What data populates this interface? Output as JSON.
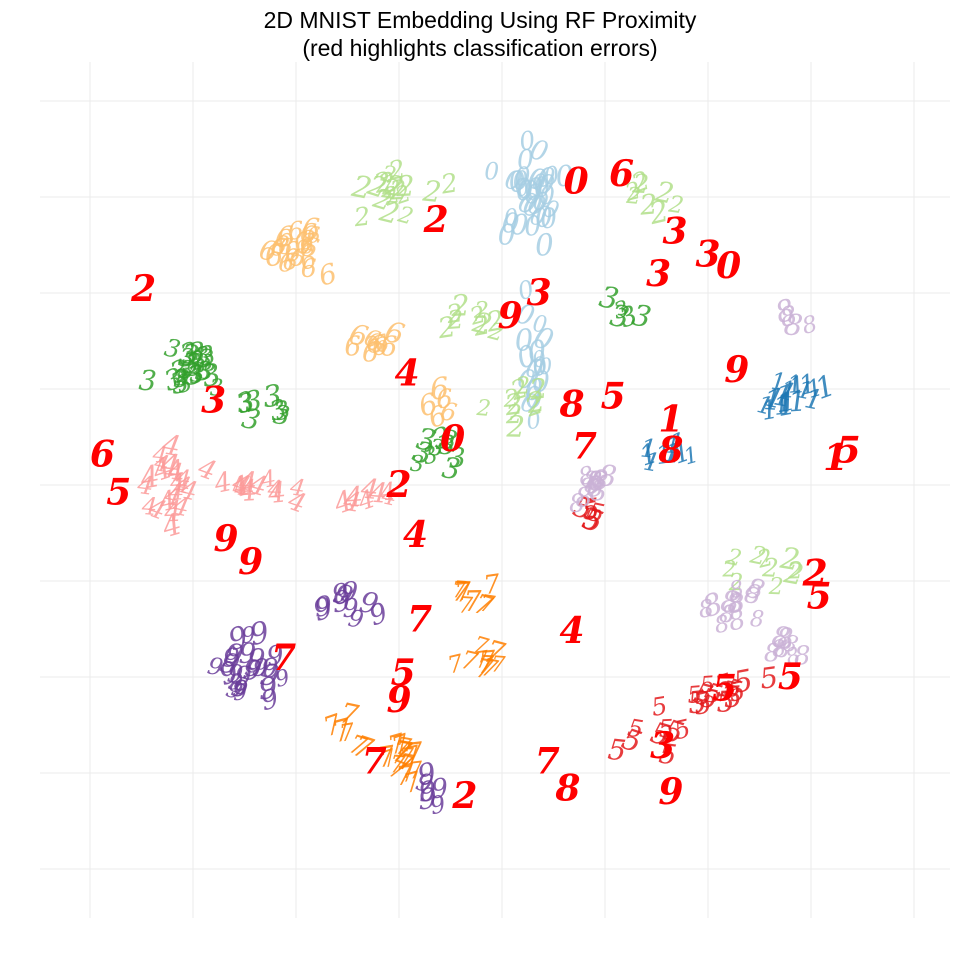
{
  "chart_data": {
    "type": "scatter",
    "title": "2D MNIST Embedding Using RF Proximity",
    "subtitle": "(red highlights classification errors)",
    "xlabel": "",
    "ylabel": "",
    "grid": true,
    "legend": "none",
    "marker": "digit glyphs",
    "colors": {
      "0": "#a6cee3",
      "1": "#1f78b4",
      "2": "#b2df8a",
      "3": "#33a02c",
      "4": "#fb9a99",
      "5": "#e31a1c",
      "6": "#fdbf6f",
      "7": "#ff7f00",
      "8": "#cab2d6",
      "9": "#6a3d9a",
      "error": "#ff0000"
    },
    "xlim": [
      -1.0,
      1.0
    ],
    "ylim": [
      -1.0,
      1.0
    ],
    "clusters": [
      {
        "digit": "0",
        "center": [
          0.07,
          0.75
        ],
        "spread": [
          0.06,
          0.12
        ],
        "count": 36
      },
      {
        "digit": "0",
        "center": [
          0.08,
          0.35
        ],
        "spread": [
          0.03,
          0.15
        ],
        "count": 18
      },
      {
        "digit": "1",
        "center": [
          0.7,
          0.22
        ],
        "spread": [
          0.06,
          0.04
        ],
        "count": 20
      },
      {
        "digit": "1",
        "center": [
          0.4,
          0.1
        ],
        "spread": [
          0.06,
          0.03
        ],
        "count": 10
      },
      {
        "digit": "2",
        "center": [
          -0.26,
          0.76
        ],
        "spread": [
          0.09,
          0.06
        ],
        "count": 18
      },
      {
        "digit": "2",
        "center": [
          -0.06,
          0.42
        ],
        "spread": [
          0.07,
          0.04
        ],
        "count": 10
      },
      {
        "digit": "2",
        "center": [
          0.06,
          0.2
        ],
        "spread": [
          0.06,
          0.05
        ],
        "count": 10
      },
      {
        "digit": "2",
        "center": [
          0.65,
          -0.22
        ],
        "spread": [
          0.08,
          0.04
        ],
        "count": 10
      },
      {
        "digit": "2",
        "center": [
          0.35,
          0.75
        ],
        "spread": [
          0.06,
          0.05
        ],
        "count": 8
      },
      {
        "digit": "3",
        "center": [
          -0.75,
          0.3
        ],
        "spread": [
          0.07,
          0.05
        ],
        "count": 26
      },
      {
        "digit": "3",
        "center": [
          -0.58,
          0.2
        ],
        "spread": [
          0.05,
          0.04
        ],
        "count": 8
      },
      {
        "digit": "3",
        "center": [
          -0.15,
          0.09
        ],
        "spread": [
          0.06,
          0.04
        ],
        "count": 10
      },
      {
        "digit": "3",
        "center": [
          0.3,
          0.45
        ],
        "spread": [
          0.05,
          0.04
        ],
        "count": 5
      },
      {
        "digit": "4",
        "center": [
          -0.8,
          0.0
        ],
        "spread": [
          0.06,
          0.08
        ],
        "count": 22
      },
      {
        "digit": "4",
        "center": [
          -0.6,
          -0.01
        ],
        "spread": [
          0.08,
          0.03
        ],
        "count": 12
      },
      {
        "digit": "4",
        "center": [
          -0.33,
          -0.03
        ],
        "spread": [
          0.05,
          0.02
        ],
        "count": 8
      },
      {
        "digit": "5",
        "center": [
          0.22,
          -0.07
        ],
        "spread": [
          0.05,
          0.03
        ],
        "count": 6
      },
      {
        "digit": "5",
        "center": [
          0.5,
          -0.55
        ],
        "spread": [
          0.1,
          0.05
        ],
        "count": 16
      },
      {
        "digit": "5",
        "center": [
          0.35,
          -0.65
        ],
        "spread": [
          0.08,
          0.05
        ],
        "count": 8
      },
      {
        "digit": "6",
        "center": [
          -0.52,
          0.61
        ],
        "spread": [
          0.06,
          0.06
        ],
        "count": 22
      },
      {
        "digit": "6",
        "center": [
          -0.3,
          0.38
        ],
        "spread": [
          0.05,
          0.05
        ],
        "count": 10
      },
      {
        "digit": "6",
        "center": [
          -0.16,
          0.22
        ],
        "spread": [
          0.04,
          0.04
        ],
        "count": 5
      },
      {
        "digit": "7",
        "center": [
          -0.24,
          -0.72
        ],
        "spread": [
          0.05,
          0.04
        ],
        "count": 18
      },
      {
        "digit": "7",
        "center": [
          -0.05,
          -0.45
        ],
        "spread": [
          0.07,
          0.04
        ],
        "count": 10
      },
      {
        "digit": "7",
        "center": [
          -0.08,
          -0.29
        ],
        "spread": [
          0.04,
          0.03
        ],
        "count": 8
      },
      {
        "digit": "7",
        "center": [
          -0.38,
          -0.63
        ],
        "spread": [
          0.06,
          0.04
        ],
        "count": 6
      },
      {
        "digit": "8",
        "center": [
          0.55,
          -0.32
        ],
        "spread": [
          0.05,
          0.05
        ],
        "count": 12
      },
      {
        "digit": "8",
        "center": [
          0.68,
          -0.42
        ],
        "spread": [
          0.05,
          0.04
        ],
        "count": 8
      },
      {
        "digit": "8",
        "center": [
          0.22,
          0.0
        ],
        "spread": [
          0.05,
          0.04
        ],
        "count": 12
      },
      {
        "digit": "8",
        "center": [
          0.71,
          0.43
        ],
        "spread": [
          0.04,
          0.03
        ],
        "count": 4
      },
      {
        "digit": "9",
        "center": [
          -0.61,
          -0.47
        ],
        "spread": [
          0.06,
          0.06
        ],
        "count": 26
      },
      {
        "digit": "9",
        "center": [
          -0.36,
          -0.31
        ],
        "spread": [
          0.05,
          0.04
        ],
        "count": 10
      },
      {
        "digit": "9",
        "center": [
          -0.17,
          -0.8
        ],
        "spread": [
          0.06,
          0.03
        ],
        "count": 6
      }
    ],
    "errors": [
      {
        "digit": "6",
        "x": 0.29,
        "y": 0.81
      },
      {
        "digit": "2",
        "x": -0.16,
        "y": 0.69
      },
      {
        "digit": "2",
        "x": -0.87,
        "y": 0.51
      },
      {
        "digit": "0",
        "x": -0.12,
        "y": 0.12
      },
      {
        "digit": "6",
        "x": -0.97,
        "y": 0.08
      },
      {
        "digit": "5",
        "x": -0.93,
        "y": -0.02
      },
      {
        "digit": "4",
        "x": -0.21,
        "y": -0.13
      },
      {
        "digit": "3",
        "x": -0.7,
        "y": 0.22
      },
      {
        "digit": "4",
        "x": -0.23,
        "y": 0.29
      },
      {
        "digit": "9",
        "x": -0.67,
        "y": -0.14
      },
      {
        "digit": "9",
        "x": -0.61,
        "y": -0.2
      },
      {
        "digit": "7",
        "x": -0.53,
        "y": -0.45
      },
      {
        "digit": "5",
        "x": -0.24,
        "y": -0.49
      },
      {
        "digit": "9",
        "x": -0.25,
        "y": -0.56
      },
      {
        "digit": "7",
        "x": -0.2,
        "y": -0.35
      },
      {
        "digit": "4",
        "x": 0.17,
        "y": -0.38
      },
      {
        "digit": "5",
        "x": 0.7,
        "y": -0.5
      },
      {
        "digit": "1",
        "x": 0.81,
        "y": 0.07
      },
      {
        "digit": "5",
        "x": 0.84,
        "y": 0.09
      },
      {
        "digit": "2",
        "x": 0.76,
        "y": -0.23
      },
      {
        "digit": "3",
        "x": 0.42,
        "y": 0.66
      },
      {
        "digit": "0",
        "x": 0.55,
        "y": 0.57
      },
      {
        "digit": "3",
        "x": 0.5,
        "y": 0.6
      },
      {
        "digit": "3",
        "x": 0.38,
        "y": 0.55
      },
      {
        "digit": "7",
        "x": 0.2,
        "y": 0.1
      },
      {
        "digit": "8",
        "x": 0.41,
        "y": 0.09
      },
      {
        "digit": "5",
        "x": 0.27,
        "y": 0.23
      },
      {
        "digit": "8",
        "x": 0.17,
        "y": 0.21
      },
      {
        "digit": "9",
        "x": 0.02,
        "y": 0.44
      },
      {
        "digit": "2",
        "x": -0.25,
        "y": 0.0
      },
      {
        "digit": "3",
        "x": 0.39,
        "y": -0.68
      },
      {
        "digit": "5",
        "x": 0.54,
        "y": -0.53
      },
      {
        "digit": "9",
        "x": 0.41,
        "y": -0.8
      },
      {
        "digit": "7",
        "x": 0.11,
        "y": -0.72
      },
      {
        "digit": "2",
        "x": -0.09,
        "y": -0.81
      },
      {
        "digit": "8",
        "x": 0.16,
        "y": -0.79
      },
      {
        "digit": "5",
        "x": 0.77,
        "y": -0.29
      },
      {
        "digit": "9",
        "x": 0.57,
        "y": 0.3
      },
      {
        "digit": "3",
        "x": 0.09,
        "y": 0.5
      },
      {
        "digit": "1",
        "x": 0.41,
        "y": 0.17
      },
      {
        "digit": "7",
        "x": -0.31,
        "y": -0.72
      },
      {
        "digit": "0",
        "x": 0.18,
        "y": 0.79
      }
    ]
  }
}
